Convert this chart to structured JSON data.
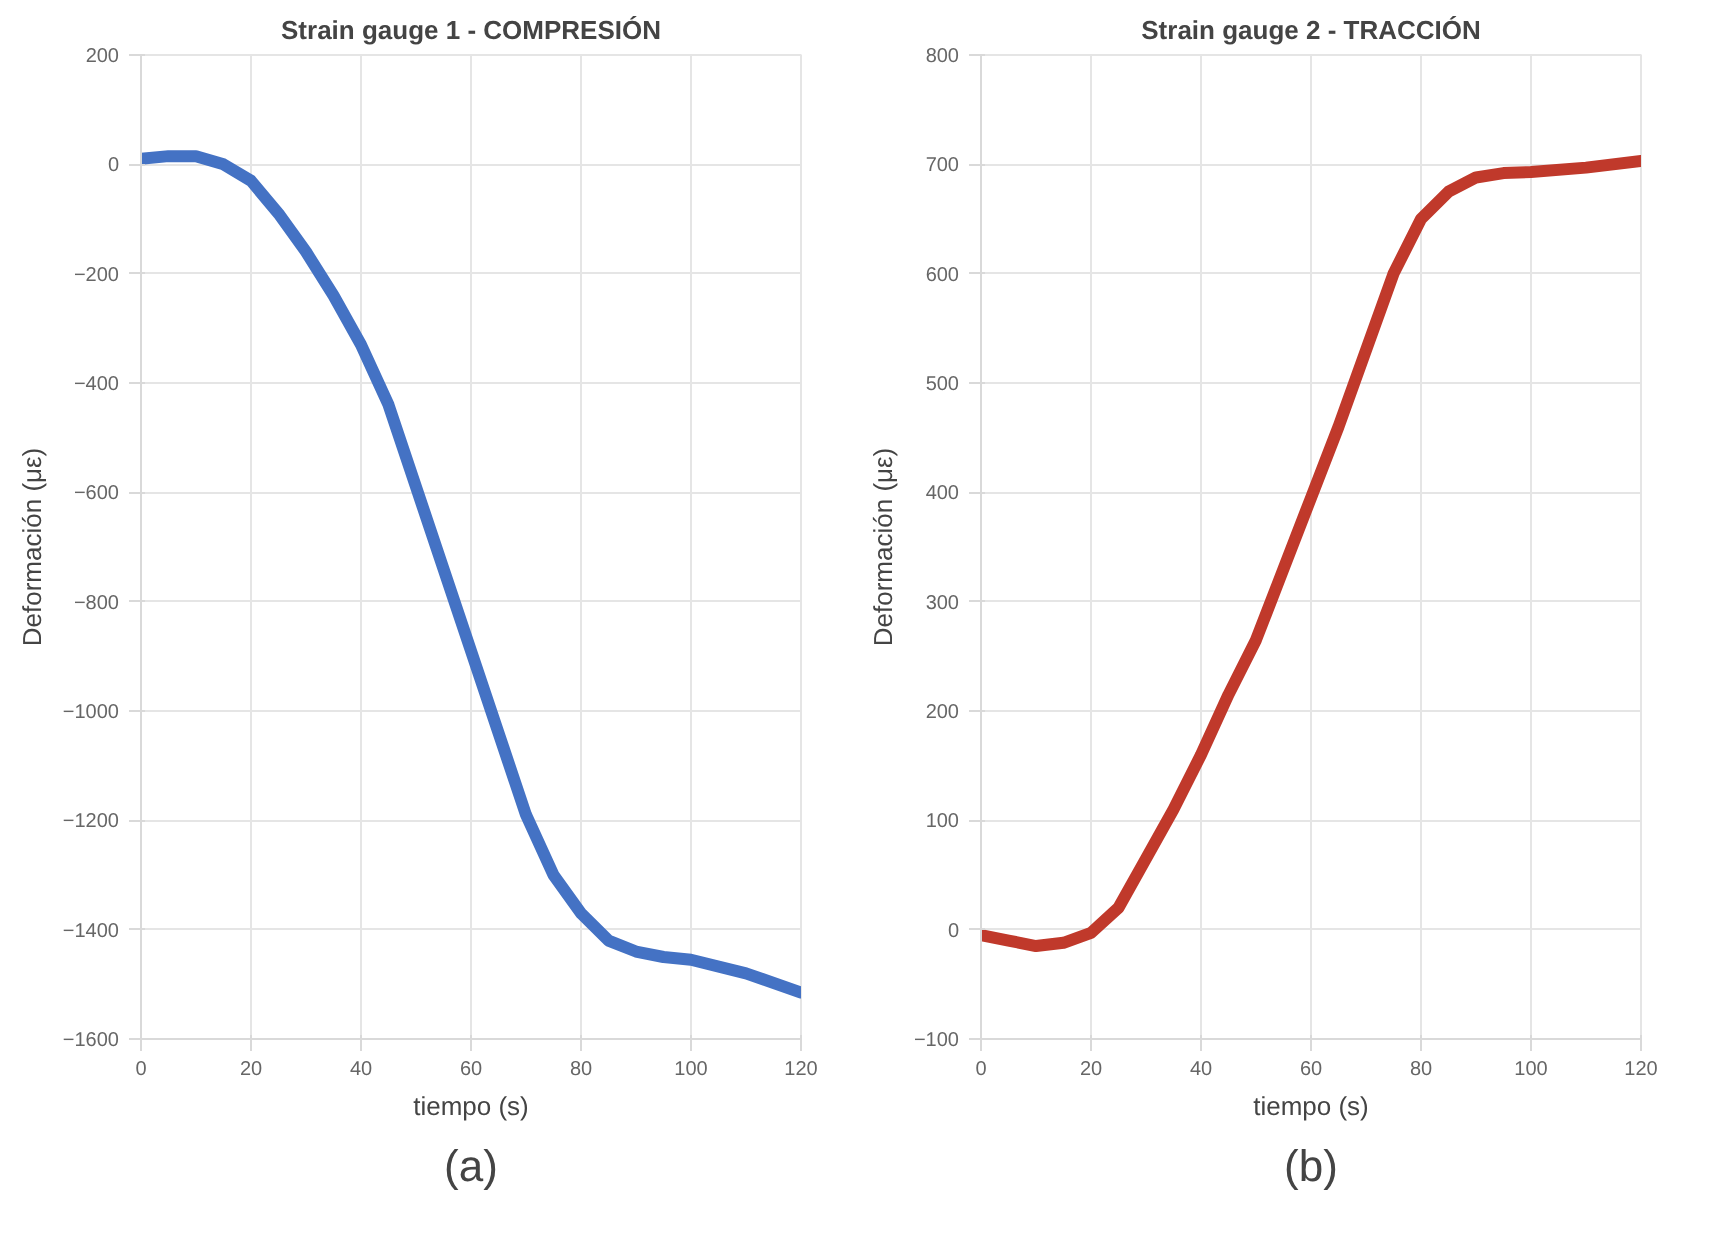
{
  "chart_data": [
    {
      "type": "line",
      "title": "Strain gauge 1 - COMPRESIÓN",
      "xlabel": "tiempo (s)",
      "ylabel": "Deformación (με)",
      "annotations": [
        "(a)"
      ],
      "x": [
        0,
        5,
        10,
        15,
        20,
        25,
        30,
        35,
        40,
        45,
        50,
        55,
        60,
        65,
        70,
        75,
        80,
        85,
        90,
        95,
        100,
        110,
        120
      ],
      "series": [
        {
          "color": "#4472c4",
          "values": [
            10,
            15,
            15,
            0,
            -30,
            -90,
            -160,
            -240,
            -330,
            -440,
            -590,
            -740,
            -890,
            -1040,
            -1190,
            -1300,
            -1370,
            -1420,
            -1440,
            -1450,
            -1455,
            -1480,
            -1515
          ]
        }
      ],
      "xlim": [
        0,
        120
      ],
      "ylim": [
        -1600,
        200
      ],
      "xticks": [
        0,
        20,
        40,
        60,
        80,
        100,
        120
      ],
      "yticks": [
        -1600,
        -1400,
        -1200,
        -1000,
        -800,
        -600,
        -400,
        -200,
        0,
        200
      ],
      "grid": true,
      "marker": "none",
      "line_style": "solid"
    },
    {
      "type": "line",
      "title": "Strain gauge 2 - TRACCIÓN",
      "xlabel": "tiempo (s)",
      "ylabel": "Deformación (με)",
      "annotations": [
        "(b)"
      ],
      "x": [
        0,
        5,
        10,
        15,
        20,
        25,
        30,
        35,
        40,
        45,
        50,
        55,
        60,
        65,
        70,
        75,
        80,
        85,
        90,
        95,
        100,
        110,
        120
      ],
      "series": [
        {
          "color": "#c0392b",
          "values": [
            -5,
            -10,
            -15,
            -12,
            -3,
            20,
            65,
            110,
            160,
            215,
            265,
            330,
            395,
            460,
            530,
            600,
            650,
            675,
            688,
            692,
            693,
            697,
            703
          ]
        }
      ],
      "xlim": [
        0,
        120
      ],
      "ylim": [
        -100,
        800
      ],
      "xticks": [
        0,
        20,
        40,
        60,
        80,
        100,
        120
      ],
      "yticks": [
        -100,
        0,
        100,
        200,
        300,
        400,
        500,
        600,
        700,
        800
      ],
      "grid": true,
      "marker": "none",
      "line_style": "solid"
    }
  ]
}
